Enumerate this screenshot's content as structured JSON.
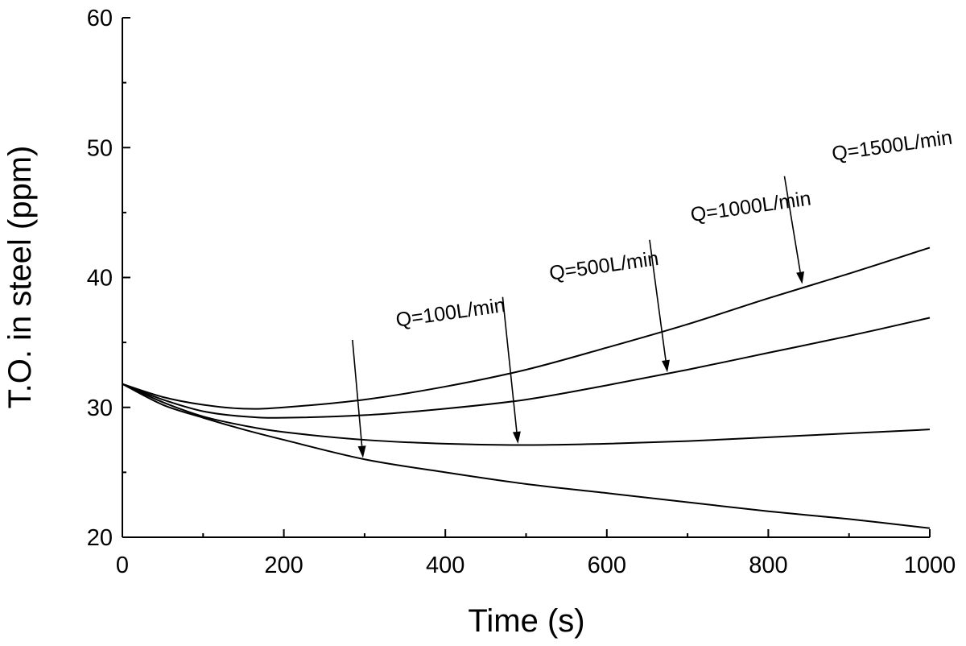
{
  "chart_data": {
    "type": "line",
    "title": "",
    "xlabel": "Time (s)",
    "ylabel": "T.O. in steel (ppm)",
    "xlim": [
      0,
      1000
    ],
    "ylim": [
      20,
      60
    ],
    "x_ticks": [
      0,
      200,
      400,
      600,
      800,
      1000
    ],
    "y_ticks": [
      20,
      30,
      40,
      50,
      60
    ],
    "x_tick_labels": [
      "0",
      "200",
      "400",
      "600",
      "800",
      "1000"
    ],
    "y_tick_labels": [
      "20",
      "30",
      "40",
      "50",
      "60"
    ],
    "x_minor_ticks": [
      100,
      300,
      500,
      700,
      900
    ],
    "y_minor_ticks": [
      25,
      35,
      45,
      55
    ],
    "grid": false,
    "legend": "none",
    "series": [
      {
        "name": "Q=100L/min",
        "x": [
          0,
          50,
          100,
          150,
          200,
          300,
          400,
          500,
          600,
          700,
          800,
          900,
          1000
        ],
        "y": [
          31.8,
          30.2,
          29.2,
          28.3,
          27.5,
          26.0,
          25.0,
          24.1,
          23.4,
          22.7,
          22.0,
          21.4,
          20.7
        ]
      },
      {
        "name": "Q=500L/min",
        "x": [
          0,
          50,
          100,
          150,
          200,
          300,
          400,
          500,
          600,
          700,
          800,
          900,
          1000
        ],
        "y": [
          31.8,
          30.4,
          29.3,
          28.6,
          28.1,
          27.5,
          27.2,
          27.1,
          27.2,
          27.4,
          27.7,
          28.0,
          28.3
        ]
      },
      {
        "name": "Q=1000L/min",
        "x": [
          0,
          50,
          100,
          150,
          200,
          300,
          400,
          500,
          600,
          700,
          800,
          900,
          1000
        ],
        "y": [
          31.8,
          30.6,
          29.7,
          29.3,
          29.2,
          29.4,
          29.9,
          30.6,
          31.7,
          32.9,
          34.2,
          35.5,
          36.9
        ]
      },
      {
        "name": "Q=1500L/min",
        "x": [
          0,
          50,
          100,
          150,
          200,
          300,
          400,
          500,
          600,
          700,
          800,
          900,
          1000
        ],
        "y": [
          31.8,
          30.8,
          30.2,
          29.9,
          30.0,
          30.6,
          31.6,
          32.9,
          34.6,
          36.4,
          38.4,
          40.3,
          42.3
        ]
      }
    ],
    "annotations": [
      {
        "text": "Q=100L/min",
        "label_x": 340,
        "label_y": 36.2,
        "arrow_from": [
          285,
          35.2
        ],
        "arrow_to": [
          298,
          26.1
        ]
      },
      {
        "text": "Q=500L/min",
        "label_x": 530,
        "label_y": 39.8,
        "arrow_from": [
          471,
          38.5
        ],
        "arrow_to": [
          490,
          27.2
        ]
      },
      {
        "text": "Q=1000L/min",
        "label_x": 705,
        "label_y": 44.3,
        "arrow_from": [
          653,
          42.9
        ],
        "arrow_to": [
          675,
          32.7
        ]
      },
      {
        "text": "Q=1500L/min",
        "label_x": 880,
        "label_y": 49.0,
        "arrow_from": [
          820,
          47.8
        ],
        "arrow_to": [
          842,
          39.5
        ]
      }
    ]
  }
}
